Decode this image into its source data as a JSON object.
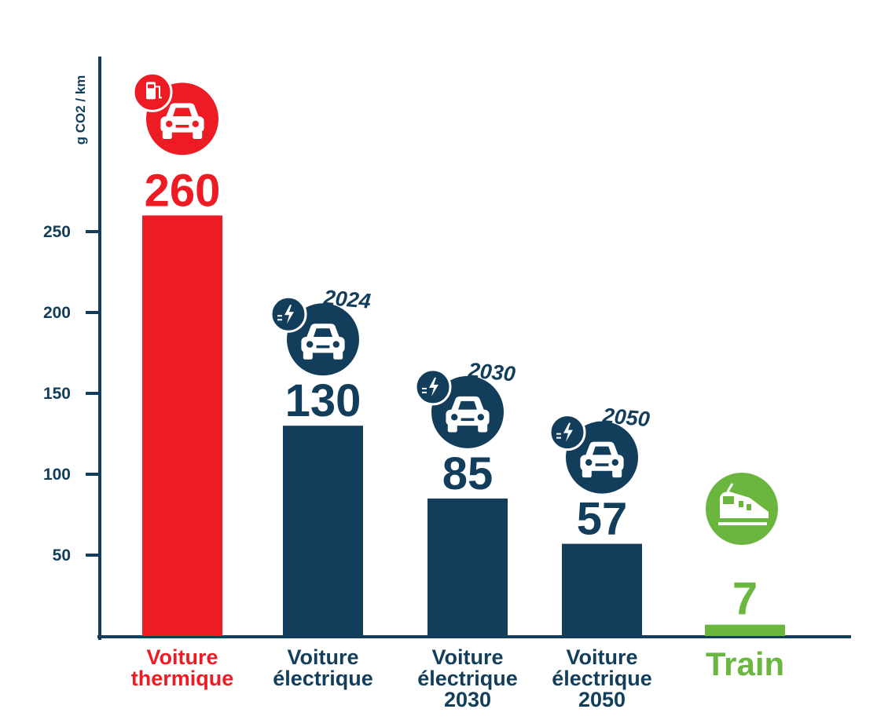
{
  "chart_data": {
    "type": "bar",
    "ylabel": "g CO2 / km",
    "yticks": [
      50,
      100,
      150,
      200,
      250
    ],
    "ylim": [
      0,
      260
    ],
    "categories": [
      {
        "lines": [
          "Voiture",
          "thermique"
        ],
        "value": 260,
        "value_label": "260",
        "color": "#ed1c24",
        "label_color": "#ed1c24",
        "icon": "fuel-car-icon",
        "year": ""
      },
      {
        "lines": [
          "Voiture",
          "électrique"
        ],
        "value": 130,
        "value_label": "130",
        "color": "#123e5b",
        "label_color": "#123e5b",
        "icon": "electric-car-icon",
        "year": "2024"
      },
      {
        "lines": [
          "Voiture",
          "électrique",
          "2030"
        ],
        "value": 85,
        "value_label": "85",
        "color": "#123e5b",
        "label_color": "#123e5b",
        "icon": "electric-car-icon",
        "year": "2030"
      },
      {
        "lines": [
          "Voiture",
          "électrique",
          "2050"
        ],
        "value": 57,
        "value_label": "57",
        "color": "#123e5b",
        "label_color": "#123e5b",
        "icon": "electric-car-icon",
        "year": "2050"
      },
      {
        "lines": [
          "Train"
        ],
        "value": 7,
        "value_label": "7",
        "color": "#6ab63e",
        "label_color": "#6ab63e",
        "icon": "train-icon",
        "year": ""
      }
    ]
  }
}
